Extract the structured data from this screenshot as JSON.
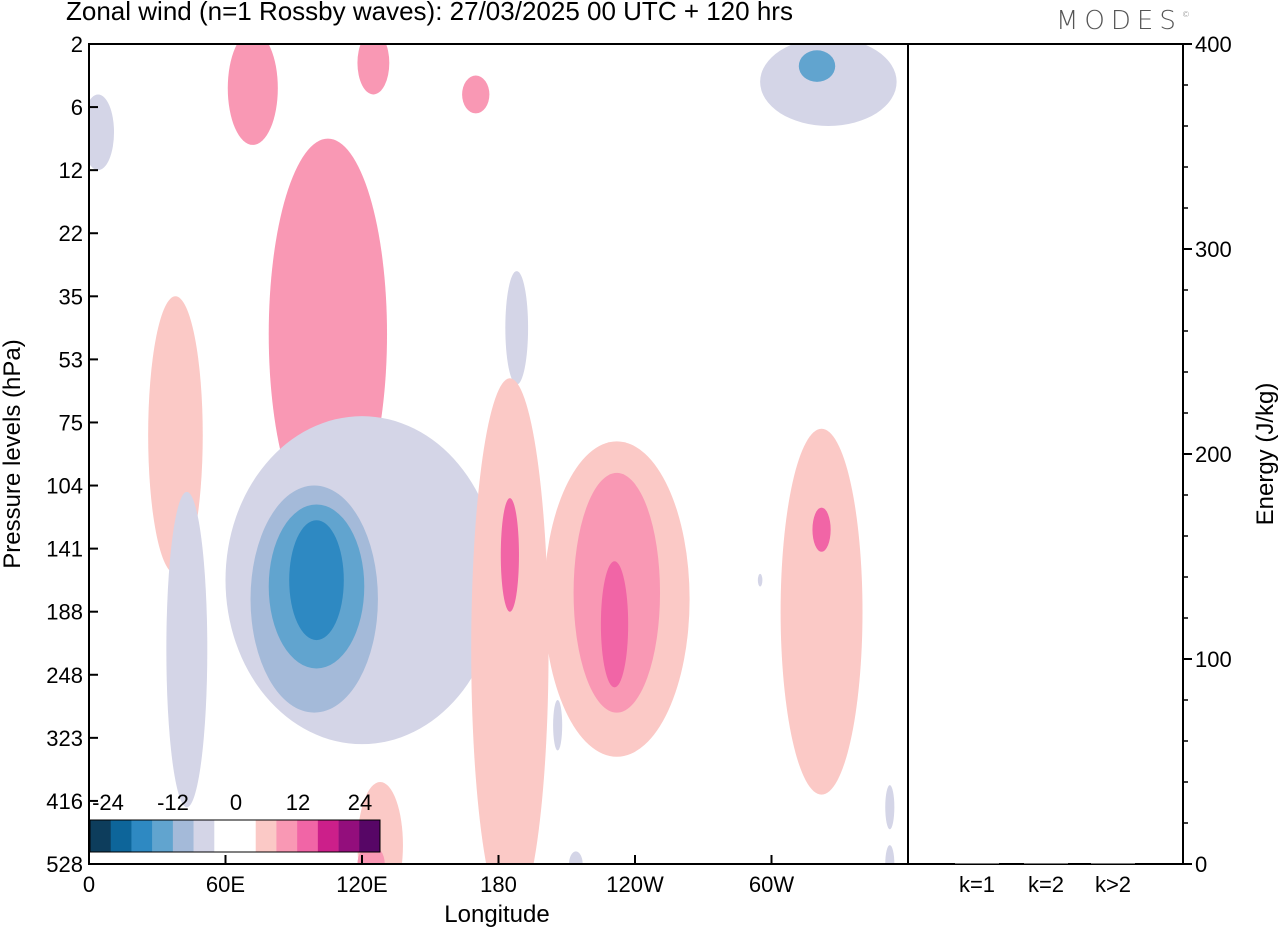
{
  "title": "Zonal wind (n=1 Rossby waves):  27/03/2025  00 UTC  + 120 hrs",
  "brand": {
    "name": "MODES",
    "mark": "©"
  },
  "colors": {
    "neg": [
      "#0d3d5c",
      "#0d659a",
      "#2e89c2",
      "#61a4cf",
      "#a4bad9",
      "#d4d5e7"
    ],
    "zero": "#ffffff",
    "pos": [
      "#fbc9c6",
      "#f998b4",
      "#f165a6",
      "#cc1f8a",
      "#930e7c",
      "#570666"
    ]
  },
  "chart_data": [
    {
      "type": "heatmap",
      "xlabel": "Longitude",
      "ylabel": "Pressure levels (hPa)",
      "x_ticks": [
        "0",
        "60E",
        "120E",
        "180",
        "120W",
        "60W"
      ],
      "x_tick_values": [
        0,
        60,
        120,
        180,
        240,
        300
      ],
      "xlim": [
        0,
        360
      ],
      "y_ticks": [
        "2",
        "6",
        "12",
        "22",
        "35",
        "53",
        "75",
        "104",
        "141",
        "188",
        "248",
        "323",
        "416",
        "528"
      ],
      "colorbar": {
        "tick_labels": [
          "-24",
          "-12",
          "0",
          "12",
          "24"
        ],
        "levels": [
          -30,
          -25,
          -20,
          -15,
          -10,
          -5,
          -2,
          2,
          5,
          10,
          15,
          20,
          25,
          30
        ]
      },
      "contours": [
        {
          "value": -4,
          "lon": 4,
          "lev": 1.4,
          "rx": 7,
          "ry": 0.6
        },
        {
          "value": -4,
          "lon": 325,
          "lev": 0.6,
          "rx": 30,
          "ry": 0.7
        },
        {
          "value": -12,
          "lon": 320,
          "lev": 0.35,
          "rx": 8,
          "ry": 0.25
        },
        {
          "value": 8,
          "lon": 72,
          "lev": 0.7,
          "rx": 11,
          "ry": 0.9
        },
        {
          "value": 8,
          "lon": 125,
          "lev": 0.3,
          "rx": 7,
          "ry": 0.5
        },
        {
          "value": 8,
          "lon": 170,
          "lev": 0.8,
          "rx": 6,
          "ry": 0.3
        },
        {
          "value": 4,
          "lon": 38,
          "lev": 6.2,
          "rx": 12,
          "ry": 2.2
        },
        {
          "value": 8,
          "lon": 105,
          "lev": 4.6,
          "rx": 26,
          "ry": 3.1
        },
        {
          "value": -4,
          "lon": 188,
          "lev": 4.5,
          "rx": 5,
          "ry": 0.9
        },
        {
          "value": -4,
          "lon": 120,
          "lev": 8.5,
          "rx": 60,
          "ry": 2.6
        },
        {
          "value": -4,
          "lon": 43,
          "lev": 9.6,
          "rx": 9,
          "ry": 2.5
        },
        {
          "value": -8,
          "lon": 99,
          "lev": 8.8,
          "rx": 28,
          "ry": 1.8
        },
        {
          "value": -12,
          "lon": 100,
          "lev": 8.6,
          "rx": 21,
          "ry": 1.3
        },
        {
          "value": -16,
          "lon": 100,
          "lev": 8.5,
          "rx": 12,
          "ry": 0.95
        },
        {
          "value": 4,
          "lon": 185,
          "lev": 9.6,
          "rx": 17,
          "ry": 4.3
        },
        {
          "value": 12,
          "lon": 185,
          "lev": 8.1,
          "rx": 4,
          "ry": 0.9
        },
        {
          "value": 4,
          "lon": 232,
          "lev": 8.8,
          "rx": 32,
          "ry": 2.5
        },
        {
          "value": 8,
          "lon": 232,
          "lev": 8.7,
          "rx": 19,
          "ry": 1.9
        },
        {
          "value": 12,
          "lon": 231,
          "lev": 9.2,
          "rx": 6,
          "ry": 1.0
        },
        {
          "value": 4,
          "lon": 322,
          "lev": 9.0,
          "rx": 18,
          "ry": 2.9
        },
        {
          "value": 12,
          "lon": 322,
          "lev": 7.7,
          "rx": 4,
          "ry": 0.35
        },
        {
          "value": -4,
          "lon": 206,
          "lev": 10.8,
          "rx": 2,
          "ry": 0.4
        },
        {
          "value": -4,
          "lon": 295,
          "lev": 8.5,
          "rx": 1,
          "ry": 0.1
        },
        {
          "value": -4,
          "lon": 352,
          "lev": 12.1,
          "rx": 2,
          "ry": 0.35
        },
        {
          "value": -4,
          "lon": 214,
          "lev": 13,
          "rx": 3,
          "ry": 0.2
        },
        {
          "value": -4,
          "lon": 352,
          "lev": 13,
          "rx": 2,
          "ry": 0.3
        },
        {
          "value": 4,
          "lon": 128,
          "lev": 12.7,
          "rx": 10,
          "ry": 1.0
        },
        {
          "value": 8,
          "lon": 124,
          "lev": 13,
          "rx": 6,
          "ry": 0.3
        }
      ]
    },
    {
      "type": "bar",
      "categories": [
        "k=1",
        "k=2",
        "k>2"
      ],
      "values": [
        0,
        0,
        0
      ],
      "ylabel": "Energy (J/kg)",
      "ylim": [
        0,
        400
      ],
      "y_ticks": [
        "0",
        "100",
        "200",
        "300",
        "400"
      ]
    }
  ]
}
